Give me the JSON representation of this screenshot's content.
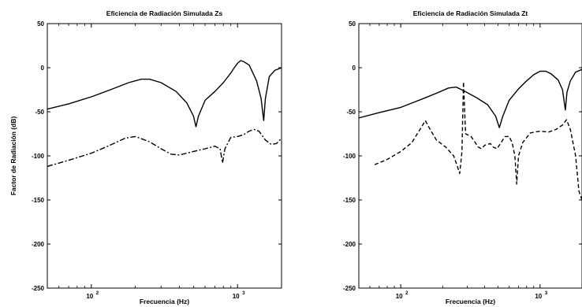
{
  "chart_data": [
    {
      "type": "line",
      "title": "Eficiencia de Radiación Simulada Zs",
      "xlabel": "Frecuencia (Hz)",
      "ylabel": "Factor de Radiación (dB)",
      "xscale": "log",
      "xlim": [
        50,
        2000
      ],
      "ylim": [
        -250,
        50
      ],
      "yticks": [
        50,
        0,
        -50,
        -100,
        -150,
        -200,
        -250
      ],
      "xticks": [
        {
          "value": 100,
          "base": "10",
          "exp": "2"
        },
        {
          "value": 1000,
          "base": "10",
          "exp": "3"
        }
      ],
      "series": [
        {
          "style": "solid",
          "points": [
            [
              50,
              -47
            ],
            [
              70,
              -41
            ],
            [
              100,
              -33
            ],
            [
              140,
              -24
            ],
            [
              180,
              -17
            ],
            [
              220,
              -13
            ],
            [
              250,
              -13
            ],
            [
              300,
              -17
            ],
            [
              380,
              -27
            ],
            [
              450,
              -40
            ],
            [
              500,
              -55
            ],
            [
              520,
              -67
            ],
            [
              540,
              -55
            ],
            [
              600,
              -37
            ],
            [
              700,
              -27
            ],
            [
              800,
              -17
            ],
            [
              900,
              -6
            ],
            [
              950,
              0
            ],
            [
              1000,
              5
            ],
            [
              1050,
              8
            ],
            [
              1100,
              7
            ],
            [
              1200,
              3
            ],
            [
              1350,
              -15
            ],
            [
              1450,
              -35
            ],
            [
              1510,
              -60
            ],
            [
              1550,
              -35
            ],
            [
              1650,
              -10
            ],
            [
              1800,
              -3
            ],
            [
              2000,
              0
            ]
          ]
        },
        {
          "style": "dashdot",
          "points": [
            [
              50,
              -112
            ],
            [
              70,
              -105
            ],
            [
              100,
              -97
            ],
            [
              130,
              -89
            ],
            [
              170,
              -80
            ],
            [
              200,
              -78
            ],
            [
              250,
              -84
            ],
            [
              300,
              -92
            ],
            [
              350,
              -98
            ],
            [
              400,
              -99
            ],
            [
              500,
              -95
            ],
            [
              600,
              -92
            ],
            [
              700,
              -89
            ],
            [
              760,
              -92
            ],
            [
              790,
              -108
            ],
            [
              820,
              -92
            ],
            [
              900,
              -79
            ],
            [
              1000,
              -78
            ],
            [
              1100,
              -76
            ],
            [
              1200,
              -72
            ],
            [
              1300,
              -70
            ],
            [
              1400,
              -72
            ],
            [
              1550,
              -82
            ],
            [
              1700,
              -87
            ],
            [
              1850,
              -86
            ],
            [
              2000,
              -80
            ]
          ]
        }
      ]
    },
    {
      "type": "line",
      "title": "Eficiencia de Radiación Simulada Zt",
      "xlabel": "Frecuencia (Hz)",
      "ylabel": "",
      "xscale": "log",
      "xlim": [
        50,
        2000
      ],
      "ylim": [
        -250,
        50
      ],
      "yticks": [
        50,
        0,
        -50,
        -100,
        -150,
        -200,
        -250
      ],
      "xticks": [
        {
          "value": 100,
          "base": "10",
          "exp": "2"
        },
        {
          "value": 1000,
          "base": "10",
          "exp": "3"
        }
      ],
      "series": [
        {
          "style": "solid",
          "points": [
            [
              50,
              -57
            ],
            [
              70,
              -51
            ],
            [
              100,
              -45
            ],
            [
              140,
              -36
            ],
            [
              180,
              -29
            ],
            [
              220,
              -23
            ],
            [
              250,
              -22
            ],
            [
              290,
              -27
            ],
            [
              350,
              -34
            ],
            [
              420,
              -42
            ],
            [
              480,
              -55
            ],
            [
              510,
              -68
            ],
            [
              540,
              -55
            ],
            [
              600,
              -37
            ],
            [
              700,
              -24
            ],
            [
              800,
              -15
            ],
            [
              900,
              -8
            ],
            [
              1000,
              -4
            ],
            [
              1100,
              -4
            ],
            [
              1200,
              -7
            ],
            [
              1350,
              -14
            ],
            [
              1450,
              -25
            ],
            [
              1520,
              -48
            ],
            [
              1560,
              -28
            ],
            [
              1650,
              -15
            ],
            [
              1800,
              -5
            ],
            [
              2000,
              -2
            ]
          ]
        },
        {
          "style": "dashed",
          "points": [
            [
              65,
              -110
            ],
            [
              80,
              -104
            ],
            [
              100,
              -95
            ],
            [
              120,
              -85
            ],
            [
              140,
              -68
            ],
            [
              150,
              -60
            ],
            [
              160,
              -68
            ],
            [
              180,
              -82
            ],
            [
              210,
              -90
            ],
            [
              240,
              -100
            ],
            [
              255,
              -112
            ],
            [
              265,
              -120
            ],
            [
              275,
              -95
            ],
            [
              282,
              -16
            ],
            [
              292,
              -75
            ],
            [
              320,
              -78
            ],
            [
              360,
              -90
            ],
            [
              380,
              -92
            ],
            [
              400,
              -88
            ],
            [
              440,
              -86
            ],
            [
              460,
              -90
            ],
            [
              490,
              -92
            ],
            [
              520,
              -86
            ],
            [
              560,
              -78
            ],
            [
              600,
              -78
            ],
            [
              630,
              -85
            ],
            [
              660,
              -100
            ],
            [
              680,
              -132
            ],
            [
              700,
              -100
            ],
            [
              750,
              -85
            ],
            [
              850,
              -74
            ],
            [
              1000,
              -72
            ],
            [
              1150,
              -73
            ],
            [
              1300,
              -70
            ],
            [
              1450,
              -65
            ],
            [
              1550,
              -59
            ],
            [
              1650,
              -70
            ],
            [
              1800,
              -100
            ],
            [
              1900,
              -140
            ],
            [
              2000,
              -150
            ]
          ]
        }
      ]
    }
  ]
}
